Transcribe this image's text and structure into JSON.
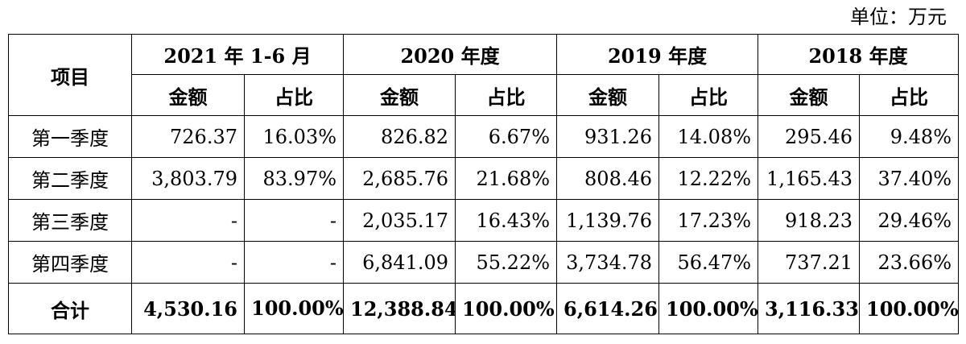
{
  "unit_label": "单位：万元",
  "header": {
    "item_label": "项目",
    "periods": [
      "2021 年 1-6 月",
      "2020 年度",
      "2019 年度",
      "2018 年度"
    ],
    "amount_label": "金额",
    "ratio_label": "占比"
  },
  "rows": [
    {
      "label": "第一季度",
      "cells": [
        "726.37",
        "16.03%",
        "826.82",
        "6.67%",
        "931.26",
        "14.08%",
        "295.46",
        "9.48%"
      ]
    },
    {
      "label": "第二季度",
      "cells": [
        "3,803.79",
        "83.97%",
        "2,685.76",
        "21.68%",
        "808.46",
        "12.22%",
        "1,165.43",
        "37.40%"
      ]
    },
    {
      "label": "第三季度",
      "cells": [
        "-",
        "-",
        "2,035.17",
        "16.43%",
        "1,139.76",
        "17.23%",
        "918.23",
        "29.46%"
      ]
    },
    {
      "label": "第四季度",
      "cells": [
        "-",
        "-",
        "6,841.09",
        "55.22%",
        "3,734.78",
        "56.47%",
        "737.21",
        "23.66%"
      ]
    }
  ],
  "total": {
    "label": "合计",
    "cells": [
      "4,530.16",
      "100.00%",
      "12,388.84",
      "100.00%",
      "6,614.26",
      "100.00%",
      "3,116.33",
      "100.00%"
    ]
  }
}
